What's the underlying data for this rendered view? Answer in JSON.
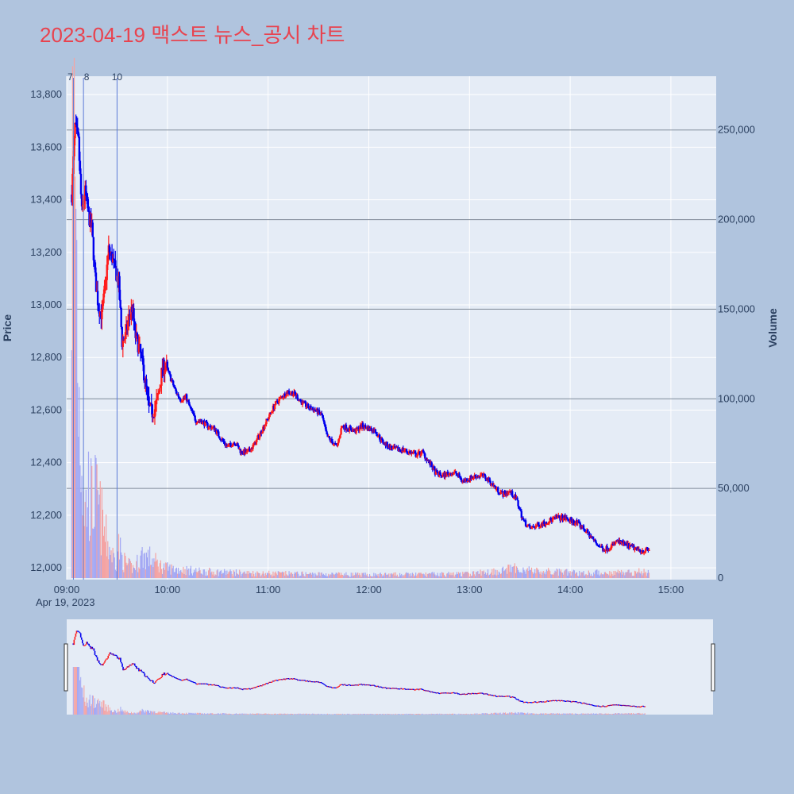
{
  "title": "2023-04-19 맥스트 뉴스_공시 차트",
  "colors": {
    "up": "#ff1a1a",
    "down": "#0000ee",
    "plot_bg": "#e5ecf6",
    "page_bg": "#b0c4de",
    "title": "#e8434f"
  },
  "chart_data": {
    "type": "candlestick",
    "title": "2023-04-19 맥스트 뉴스_공시 차트",
    "ylabel": "Price",
    "y2label": "Volume",
    "date_label": "Apr 19, 2023",
    "ylim": [
      11955,
      13870
    ],
    "y2lim": [
      0,
      280000
    ],
    "xlim_minutes": [
      540,
      927
    ],
    "price_ticks": [
      12000,
      12200,
      12400,
      12600,
      12800,
      13000,
      13200,
      13400,
      13600,
      13800
    ],
    "price_tick_labels": [
      "12,000",
      "12,200",
      "12,400",
      "12,600",
      "12,800",
      "13,000",
      "13,200",
      "13,400",
      "13,600",
      "13,800"
    ],
    "volume_ticks": [
      0,
      50000,
      100000,
      150000,
      200000,
      250000
    ],
    "volume_tick_labels": [
      "0",
      "50,000",
      "100,000",
      "150,000",
      "200,000",
      "250,000"
    ],
    "time_ticks": [
      540,
      600,
      660,
      720,
      780,
      840,
      900
    ],
    "time_tick_labels": [
      "09:00",
      "10:00",
      "11:00",
      "12:00",
      "13:00",
      "14:00",
      "15:00"
    ],
    "news_markers": [
      {
        "label": "7",
        "minute": 544
      },
      {
        "label": "8",
        "minute": 550
      },
      {
        "label": "10",
        "minute": 570
      }
    ],
    "price_keypoints": [
      [
        543,
        13420
      ],
      [
        545,
        13680
      ],
      [
        547,
        13620
      ],
      [
        549,
        13350
      ],
      [
        551,
        13430
      ],
      [
        553,
        13340
      ],
      [
        555,
        13290
      ],
      [
        557,
        13100
      ],
      [
        559,
        12990
      ],
      [
        561,
        12960
      ],
      [
        563,
        13080
      ],
      [
        565,
        13210
      ],
      [
        567,
        13180
      ],
      [
        569,
        13130
      ],
      [
        571,
        13080
      ],
      [
        573,
        12860
      ],
      [
        575,
        12880
      ],
      [
        577,
        12950
      ],
      [
        579,
        12990
      ],
      [
        581,
        12880
      ],
      [
        583,
        12840
      ],
      [
        585,
        12780
      ],
      [
        587,
        12700
      ],
      [
        589,
        12610
      ],
      [
        591,
        12590
      ],
      [
        593,
        12610
      ],
      [
        595,
        12670
      ],
      [
        597,
        12760
      ],
      [
        599,
        12770
      ],
      [
        602,
        12720
      ],
      [
        605,
        12670
      ],
      [
        608,
        12640
      ],
      [
        611,
        12650
      ],
      [
        614,
        12600
      ],
      [
        617,
        12560
      ],
      [
        620,
        12560
      ],
      [
        624,
        12540
      ],
      [
        628,
        12530
      ],
      [
        632,
        12490
      ],
      [
        636,
        12460
      ],
      [
        640,
        12480
      ],
      [
        644,
        12440
      ],
      [
        648,
        12440
      ],
      [
        652,
        12470
      ],
      [
        656,
        12520
      ],
      [
        660,
        12570
      ],
      [
        664,
        12620
      ],
      [
        668,
        12650
      ],
      [
        672,
        12670
      ],
      [
        676,
        12660
      ],
      [
        680,
        12630
      ],
      [
        684,
        12610
      ],
      [
        688,
        12600
      ],
      [
        692,
        12580
      ],
      [
        695,
        12500
      ],
      [
        698,
        12480
      ],
      [
        701,
        12460
      ],
      [
        704,
        12540
      ],
      [
        708,
        12530
      ],
      [
        712,
        12520
      ],
      [
        716,
        12540
      ],
      [
        720,
        12530
      ],
      [
        724,
        12520
      ],
      [
        728,
        12480
      ],
      [
        732,
        12460
      ],
      [
        736,
        12450
      ],
      [
        740,
        12450
      ],
      [
        744,
        12440
      ],
      [
        748,
        12430
      ],
      [
        752,
        12440
      ],
      [
        756,
        12400
      ],
      [
        760,
        12360
      ],
      [
        764,
        12350
      ],
      [
        768,
        12360
      ],
      [
        772,
        12360
      ],
      [
        776,
        12330
      ],
      [
        780,
        12340
      ],
      [
        784,
        12350
      ],
      [
        788,
        12350
      ],
      [
        792,
        12330
      ],
      [
        796,
        12300
      ],
      [
        800,
        12280
      ],
      [
        804,
        12290
      ],
      [
        808,
        12260
      ],
      [
        812,
        12180
      ],
      [
        816,
        12150
      ],
      [
        820,
        12160
      ],
      [
        824,
        12170
      ],
      [
        828,
        12180
      ],
      [
        832,
        12190
      ],
      [
        836,
        12190
      ],
      [
        840,
        12180
      ],
      [
        844,
        12170
      ],
      [
        848,
        12150
      ],
      [
        852,
        12120
      ],
      [
        856,
        12090
      ],
      [
        860,
        12070
      ],
      [
        864,
        12080
      ],
      [
        868,
        12100
      ],
      [
        872,
        12090
      ],
      [
        876,
        12080
      ],
      [
        880,
        12070
      ],
      [
        884,
        12065
      ],
      [
        887,
        12070
      ]
    ],
    "volume_profile": [
      [
        543,
        230000
      ],
      [
        545,
        260000
      ],
      [
        547,
        120000
      ],
      [
        549,
        80000
      ],
      [
        551,
        40000
      ],
      [
        553,
        55000
      ],
      [
        555,
        45000
      ],
      [
        557,
        50000
      ],
      [
        559,
        42000
      ],
      [
        561,
        35000
      ],
      [
        563,
        25000
      ],
      [
        565,
        20000
      ],
      [
        567,
        15000
      ],
      [
        569,
        10000
      ],
      [
        571,
        20000
      ],
      [
        573,
        12000
      ],
      [
        576,
        8000
      ],
      [
        580,
        6000
      ],
      [
        585,
        14000
      ],
      [
        590,
        12000
      ],
      [
        595,
        8000
      ],
      [
        600,
        6000
      ],
      [
        620,
        4000
      ],
      [
        650,
        3000
      ],
      [
        680,
        2500
      ],
      [
        720,
        2000
      ],
      [
        780,
        2500
      ],
      [
        810,
        6000
      ],
      [
        820,
        4000
      ],
      [
        850,
        3000
      ],
      [
        887,
        4000
      ]
    ]
  }
}
